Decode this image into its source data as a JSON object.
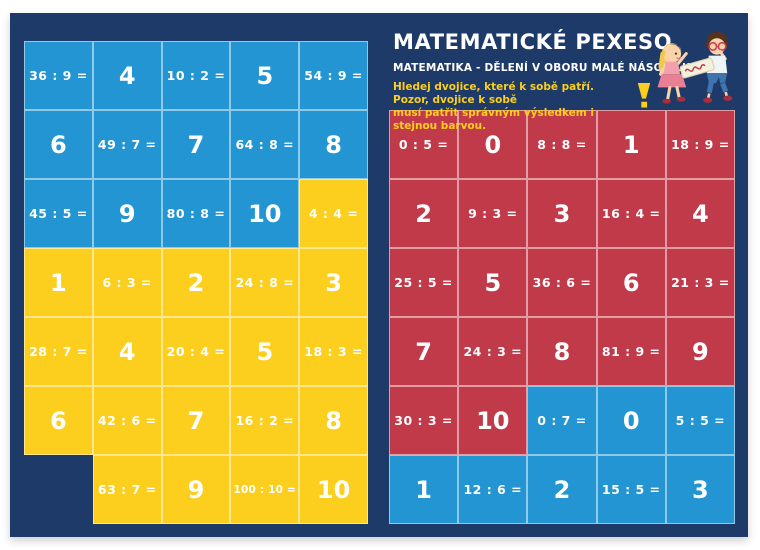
{
  "header": {
    "title": "MATEMATICKÉ PEXESO",
    "subtitle": "MATEMATIKA - DĚLENÍ V OBORU MALÉ NÁSOBILKY",
    "instructions_line1": "Hledej dvojice, které k sobě patří. Pozor, dvojice k sobě",
    "instructions_line2": "musí patřit správným výsledkem i stejnou barvou."
  },
  "colors": {
    "navy": "#1e3a68",
    "blue": "#2295d2",
    "yellow": "#fccf1e",
    "red": "#c03a4a",
    "text": "#ffffff"
  },
  "icons": {
    "warning": "exclamation-icon",
    "illustration": "kids-illustration"
  },
  "left_grid": {
    "rows": [
      [
        {
          "t": "36 : 9 =",
          "c": "blue"
        },
        {
          "t": "4",
          "c": "blue"
        },
        {
          "t": "10 : 2 =",
          "c": "blue"
        },
        {
          "t": "5",
          "c": "blue"
        },
        {
          "t": "54 : 9 =",
          "c": "blue"
        }
      ],
      [
        {
          "t": "6",
          "c": "blue"
        },
        {
          "t": "49 : 7 =",
          "c": "blue"
        },
        {
          "t": "7",
          "c": "blue"
        },
        {
          "t": "64 : 8 =",
          "c": "blue"
        },
        {
          "t": "8",
          "c": "blue"
        }
      ],
      [
        {
          "t": "45 : 5 =",
          "c": "blue"
        },
        {
          "t": "9",
          "c": "blue"
        },
        {
          "t": "80 : 8 =",
          "c": "blue"
        },
        {
          "t": "10",
          "c": "blue"
        },
        {
          "t": "4 : 4 =",
          "c": "yellow"
        }
      ],
      [
        {
          "t": "1",
          "c": "yellow"
        },
        {
          "t": "6 : 3 =",
          "c": "yellow"
        },
        {
          "t": "2",
          "c": "yellow"
        },
        {
          "t": "24 : 8 =",
          "c": "yellow"
        },
        {
          "t": "3",
          "c": "yellow"
        }
      ],
      [
        {
          "t": "28 : 7 =",
          "c": "yellow"
        },
        {
          "t": "4",
          "c": "yellow"
        },
        {
          "t": "20 : 4 =",
          "c": "yellow"
        },
        {
          "t": "5",
          "c": "yellow"
        },
        {
          "t": "18 : 3 =",
          "c": "yellow"
        }
      ],
      [
        {
          "t": "6",
          "c": "yellow"
        },
        {
          "t": "42 : 6 =",
          "c": "yellow"
        },
        {
          "t": "7",
          "c": "yellow"
        },
        {
          "t": "16 : 2 =",
          "c": "yellow"
        },
        {
          "t": "8",
          "c": "yellow"
        }
      ],
      [
        null,
        {
          "t": "63 : 7 =",
          "c": "yellow"
        },
        {
          "t": "9",
          "c": "yellow"
        },
        {
          "t": "100 : 10 =",
          "c": "yellow"
        },
        {
          "t": "10",
          "c": "yellow"
        }
      ]
    ]
  },
  "right_grid": {
    "rows": [
      [
        {
          "t": "0 : 5 =",
          "c": "red"
        },
        {
          "t": "0",
          "c": "red"
        },
        {
          "t": "8 : 8 =",
          "c": "red"
        },
        {
          "t": "1",
          "c": "red"
        },
        {
          "t": "18 : 9 =",
          "c": "red"
        }
      ],
      [
        {
          "t": "2",
          "c": "red"
        },
        {
          "t": "9 : 3 =",
          "c": "red"
        },
        {
          "t": "3",
          "c": "red"
        },
        {
          "t": "16 : 4 =",
          "c": "red"
        },
        {
          "t": "4",
          "c": "red"
        }
      ],
      [
        {
          "t": "25 : 5 =",
          "c": "red"
        },
        {
          "t": "5",
          "c": "red"
        },
        {
          "t": "36 : 6 =",
          "c": "red"
        },
        {
          "t": "6",
          "c": "red"
        },
        {
          "t": "21 : 3 =",
          "c": "red"
        }
      ],
      [
        {
          "t": "7",
          "c": "red"
        },
        {
          "t": "24 : 3 =",
          "c": "red"
        },
        {
          "t": "8",
          "c": "red"
        },
        {
          "t": "81 : 9 =",
          "c": "red"
        },
        {
          "t": "9",
          "c": "red"
        }
      ],
      [
        {
          "t": "30 : 3 =",
          "c": "red"
        },
        {
          "t": "10",
          "c": "red"
        },
        {
          "t": "0 : 7 =",
          "c": "blue"
        },
        {
          "t": "0",
          "c": "blue"
        },
        {
          "t": "5 : 5 =",
          "c": "blue"
        }
      ],
      [
        {
          "t": "1",
          "c": "blue"
        },
        {
          "t": "12 : 6 =",
          "c": "blue"
        },
        {
          "t": "2",
          "c": "blue"
        },
        {
          "t": "15 : 5 =",
          "c": "blue"
        },
        {
          "t": "3",
          "c": "blue"
        }
      ]
    ]
  }
}
